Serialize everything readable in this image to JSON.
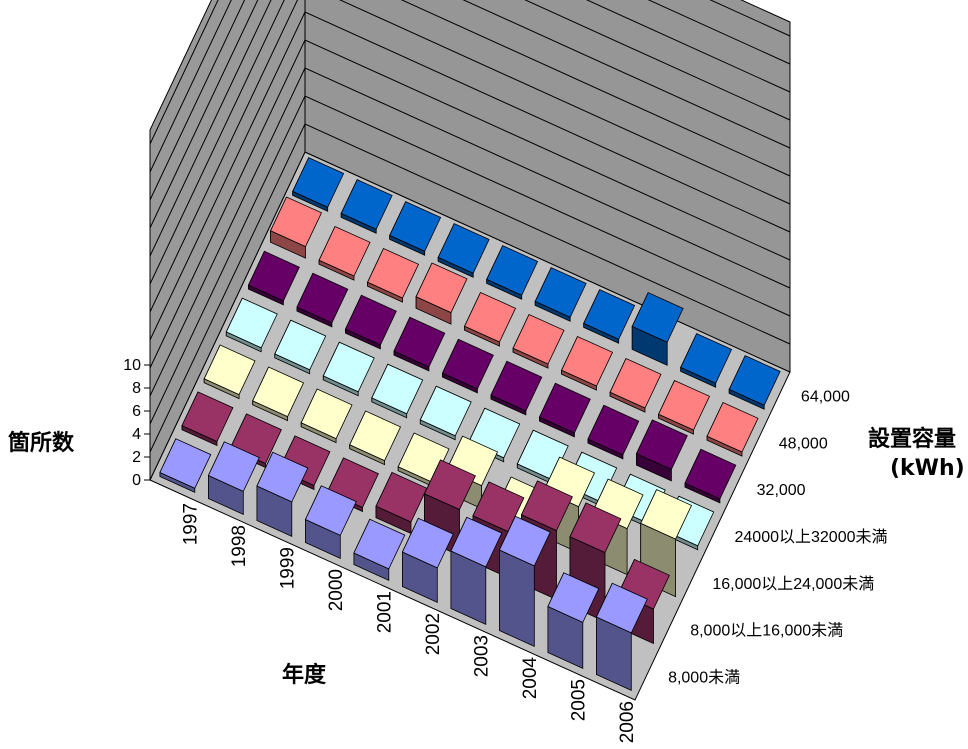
{
  "chart_data": {
    "type": "bar3d",
    "title": "",
    "z_label": "箇所数",
    "x_label": "年度",
    "y_label": "設置容量",
    "y_unit": "(kWh)",
    "z_ticks": [
      "0",
      "2",
      "4",
      "6",
      "8",
      "10"
    ],
    "zlim": [
      0,
      10
    ],
    "categories": [
      "1997",
      "1998",
      "1999",
      "2000",
      "2001",
      "2002",
      "2003",
      "2004",
      "2005",
      "2006"
    ],
    "series": [
      {
        "name": "8,000未満",
        "color": "#9999ff",
        "values": [
          0,
          2,
          3,
          2,
          1,
          3,
          5,
          7,
          4,
          5
        ]
      },
      {
        "name": "8,000以上16,000未満",
        "color": "#993366",
        "values": [
          0,
          0,
          0,
          0,
          1,
          4,
          4,
          6,
          6,
          3
        ]
      },
      {
        "name": "16,000以上24,000未満",
        "color": "#ffffcc",
        "values": [
          0,
          0,
          0,
          0,
          0,
          2,
          0,
          4,
          4,
          5
        ]
      },
      {
        "name": "24000以上32000未満",
        "color": "#ccffff",
        "values": [
          0,
          0,
          0,
          0,
          0,
          0,
          0,
          0,
          0,
          0
        ]
      },
      {
        "name": "32,000",
        "color": "#660066",
        "values": [
          0,
          0,
          0,
          0,
          0,
          0,
          0,
          0,
          1,
          0
        ]
      },
      {
        "name": "48,000",
        "color": "#ff8080",
        "values": [
          1,
          0,
          0,
          1,
          0,
          0,
          0,
          0,
          0,
          0
        ]
      },
      {
        "name": "64,000",
        "color": "#0066cc",
        "values": [
          0,
          0,
          0,
          0,
          0,
          0,
          0,
          2,
          0,
          0
        ]
      }
    ]
  }
}
